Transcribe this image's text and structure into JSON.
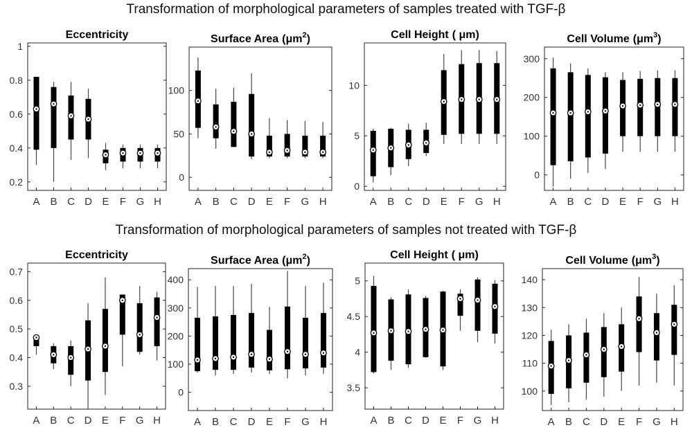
{
  "row_titles": [
    "Transformation of morphological parameters of samples treated with TGF-β",
    "Transformation of morphological parameters of samples not treated with TGF-β"
  ],
  "chart_data": [
    {
      "type": "box",
      "group": "treated with TGF-β",
      "title": "Eccentricity",
      "title_unit": "",
      "title_sup": "",
      "categories": [
        "A",
        "B",
        "C",
        "D",
        "E",
        "F",
        "G",
        "H"
      ],
      "ylim": [
        0.15,
        1.02
      ],
      "yticks": [
        0.2,
        0.4,
        0.6,
        0.8,
        1
      ],
      "boxes": [
        {
          "whisker_low": 0.3,
          "q1": 0.39,
          "median": 0.63,
          "q3": 0.82,
          "whisker_high": 0.82
        },
        {
          "whisker_low": 0.2,
          "q1": 0.4,
          "median": 0.66,
          "q3": 0.76,
          "whisker_high": 0.79
        },
        {
          "whisker_low": 0.33,
          "q1": 0.45,
          "median": 0.59,
          "q3": 0.71,
          "whisker_high": 0.79
        },
        {
          "whisker_low": 0.34,
          "q1": 0.45,
          "median": 0.57,
          "q3": 0.69,
          "whisker_high": 0.75
        },
        {
          "whisker_low": 0.27,
          "q1": 0.31,
          "median": 0.36,
          "q3": 0.39,
          "whisker_high": 0.43
        },
        {
          "whisker_low": 0.28,
          "q1": 0.32,
          "median": 0.37,
          "q3": 0.4,
          "whisker_high": 0.42
        },
        {
          "whisker_low": 0.28,
          "q1": 0.32,
          "median": 0.37,
          "q3": 0.4,
          "whisker_high": 0.42
        },
        {
          "whisker_low": 0.28,
          "q1": 0.32,
          "median": 0.37,
          "q3": 0.4,
          "whisker_high": 0.42
        }
      ]
    },
    {
      "type": "box",
      "group": "treated with TGF-β",
      "title": "Surface Area",
      "title_unit": "(μm",
      "title_sup": "2",
      "categories": [
        "A",
        "B",
        "C",
        "D",
        "E",
        "F",
        "G",
        "H"
      ],
      "ylim": [
        -15,
        150
      ],
      "yticks": [
        0,
        50,
        100
      ],
      "boxes": [
        {
          "whisker_low": 45,
          "q1": 57,
          "median": 88,
          "q3": 123,
          "whisker_high": 138
        },
        {
          "whisker_low": 33,
          "q1": 45,
          "median": 58,
          "q3": 84,
          "whisker_high": 102
        },
        {
          "whisker_low": 35,
          "q1": 35,
          "median": 53,
          "q3": 87,
          "whisker_high": 103
        },
        {
          "whisker_low": 21,
          "q1": 24,
          "median": 50,
          "q3": 96,
          "whisker_high": 120
        },
        {
          "whisker_low": 22,
          "q1": 24,
          "median": 29,
          "q3": 48,
          "whisker_high": 68
        },
        {
          "whisker_low": 22,
          "q1": 24,
          "median": 31,
          "q3": 50,
          "whisker_high": 66
        },
        {
          "whisker_low": 22,
          "q1": 24,
          "median": 29,
          "q3": 48,
          "whisker_high": 65
        },
        {
          "whisker_low": 22,
          "q1": 24,
          "median": 29,
          "q3": 48,
          "whisker_high": 64
        }
      ]
    },
    {
      "type": "box",
      "group": "treated with TGF-β",
      "title": "Cell Height",
      "title_unit": "( μm)",
      "title_sup": "",
      "categories": [
        "A",
        "B",
        "C",
        "D",
        "E",
        "F",
        "G",
        "H"
      ],
      "ylim": [
        -0.4,
        14.2
      ],
      "yticks": [
        0,
        5,
        10
      ],
      "boxes": [
        {
          "whisker_low": 0.4,
          "q1": 1.0,
          "median": 3.6,
          "q3": 5.5,
          "whisker_high": 5.7
        },
        {
          "whisker_low": 1.1,
          "q1": 1.9,
          "median": 3.8,
          "q3": 5.7,
          "whisker_high": 5.8
        },
        {
          "whisker_low": 2.0,
          "q1": 2.7,
          "median": 4.1,
          "q3": 5.6,
          "whisker_high": 6.2
        },
        {
          "whisker_low": 3.0,
          "q1": 3.3,
          "median": 4.3,
          "q3": 5.6,
          "whisker_high": 6.3
        },
        {
          "whisker_low": 4.2,
          "q1": 5.1,
          "median": 8.4,
          "q3": 11.5,
          "whisker_high": 13.1
        },
        {
          "whisker_low": 4.2,
          "q1": 5.2,
          "median": 8.6,
          "q3": 12.1,
          "whisker_high": 13.5
        },
        {
          "whisker_low": 4.2,
          "q1": 5.2,
          "median": 8.6,
          "q3": 12.2,
          "whisker_high": 13.5
        },
        {
          "whisker_low": 4.2,
          "q1": 5.2,
          "median": 8.6,
          "q3": 12.2,
          "whisker_high": 13.4
        }
      ]
    },
    {
      "type": "box",
      "group": "treated with TGF-β",
      "title": "Cell Volume",
      "title_unit": "(μm",
      "title_sup": "3",
      "categories": [
        "A",
        "B",
        "C",
        "D",
        "E",
        "F",
        "G",
        "H"
      ],
      "ylim": [
        -40,
        330
      ],
      "yticks": [
        0,
        100,
        200,
        300
      ],
      "boxes": [
        {
          "whisker_low": -30,
          "q1": 25,
          "median": 160,
          "q3": 275,
          "whisker_high": 303
        },
        {
          "whisker_low": -10,
          "q1": 35,
          "median": 160,
          "q3": 265,
          "whisker_high": 288
        },
        {
          "whisker_low": 5,
          "q1": 45,
          "median": 163,
          "q3": 258,
          "whisker_high": 275
        },
        {
          "whisker_low": 15,
          "q1": 55,
          "median": 165,
          "q3": 252,
          "whisker_high": 265
        },
        {
          "whisker_low": 60,
          "q1": 100,
          "median": 178,
          "q3": 245,
          "whisker_high": 265
        },
        {
          "whisker_low": 60,
          "q1": 100,
          "median": 180,
          "q3": 248,
          "whisker_high": 268
        },
        {
          "whisker_low": 60,
          "q1": 100,
          "median": 182,
          "q3": 250,
          "whisker_high": 270
        },
        {
          "whisker_low": 60,
          "q1": 100,
          "median": 182,
          "q3": 250,
          "whisker_high": 270
        }
      ]
    },
    {
      "type": "box",
      "group": "not treated with TGF-β",
      "title": "Eccentricity",
      "title_unit": "",
      "title_sup": "",
      "categories": [
        "A",
        "B",
        "C",
        "D",
        "E",
        "F",
        "G",
        "H"
      ],
      "ylim": [
        0.22,
        0.73
      ],
      "yticks": [
        0.3,
        0.4,
        0.5,
        0.6,
        0.7
      ],
      "boxes": [
        {
          "whisker_low": 0.41,
          "q1": 0.44,
          "median": 0.47,
          "q3": 0.47,
          "whisker_high": 0.47
        },
        {
          "whisker_low": 0.36,
          "q1": 0.38,
          "median": 0.41,
          "q3": 0.44,
          "whisker_high": 0.45
        },
        {
          "whisker_low": 0.3,
          "q1": 0.34,
          "median": 0.4,
          "q3": 0.44,
          "whisker_high": 0.46
        },
        {
          "whisker_low": 0.23,
          "q1": 0.32,
          "median": 0.43,
          "q3": 0.53,
          "whisker_high": 0.59
        },
        {
          "whisker_low": 0.27,
          "q1": 0.35,
          "median": 0.44,
          "q3": 0.57,
          "whisker_high": 0.68
        },
        {
          "whisker_low": 0.37,
          "q1": 0.48,
          "median": 0.6,
          "q3": 0.62,
          "whisker_high": 0.62
        },
        {
          "whisker_low": 0.41,
          "q1": 0.42,
          "median": 0.48,
          "q3": 0.59,
          "whisker_high": 0.65
        },
        {
          "whisker_low": 0.39,
          "q1": 0.44,
          "median": 0.54,
          "q3": 0.61,
          "whisker_high": 0.63
        }
      ]
    },
    {
      "type": "box",
      "group": "not treated with TGF-β",
      "title": "Surface Area",
      "title_unit": "(μm",
      "title_sup": "2",
      "categories": [
        "A",
        "B",
        "C",
        "D",
        "E",
        "F",
        "G",
        "H"
      ],
      "ylim": [
        -65,
        440
      ],
      "yticks": [
        0,
        100,
        200,
        300,
        400
      ],
      "boxes": [
        {
          "whisker_low": 70,
          "q1": 75,
          "median": 115,
          "q3": 265,
          "whisker_high": 375
        },
        {
          "whisker_low": 60,
          "q1": 80,
          "median": 120,
          "q3": 270,
          "whisker_high": 378
        },
        {
          "whisker_low": 65,
          "q1": 80,
          "median": 125,
          "q3": 275,
          "whisker_high": 378
        },
        {
          "whisker_low": 70,
          "q1": 88,
          "median": 135,
          "q3": 282,
          "whisker_high": 386
        },
        {
          "whisker_low": 65,
          "q1": 78,
          "median": 118,
          "q3": 222,
          "whisker_high": 304
        },
        {
          "whisker_low": 50,
          "q1": 82,
          "median": 145,
          "q3": 305,
          "whisker_high": 432
        },
        {
          "whisker_low": 60,
          "q1": 85,
          "median": 135,
          "q3": 265,
          "whisker_high": 378
        },
        {
          "whisker_low": 65,
          "q1": 88,
          "median": 140,
          "q3": 282,
          "whisker_high": 390
        }
      ]
    },
    {
      "type": "box",
      "group": "not treated with TGF-β",
      "title": "Cell Height",
      "title_unit": "( μm)",
      "title_sup": "",
      "categories": [
        "A",
        "B",
        "C",
        "D",
        "E",
        "F",
        "G",
        "H"
      ],
      "ylim": [
        3.2,
        5.25
      ],
      "yticks": [
        3.5,
        4,
        4.5,
        5
      ],
      "boxes": [
        {
          "whisker_low": 3.7,
          "q1": 3.72,
          "median": 4.27,
          "q3": 4.93,
          "whisker_high": 5.07
        },
        {
          "whisker_low": 3.75,
          "q1": 3.88,
          "median": 4.3,
          "q3": 4.74,
          "whisker_high": 4.77
        },
        {
          "whisker_low": 3.78,
          "q1": 3.83,
          "median": 4.29,
          "q3": 4.81,
          "whisker_high": 4.88
        },
        {
          "whisker_low": 3.92,
          "q1": 3.93,
          "median": 4.32,
          "q3": 4.76,
          "whisker_high": 4.79
        },
        {
          "whisker_low": 3.75,
          "q1": 3.8,
          "median": 4.31,
          "q3": 4.85,
          "whisker_high": 4.86
        },
        {
          "whisker_low": 4.3,
          "q1": 4.51,
          "median": 4.75,
          "q3": 4.82,
          "whisker_high": 4.88
        },
        {
          "whisker_low": 4.14,
          "q1": 4.3,
          "median": 4.73,
          "q3": 5.02,
          "whisker_high": 5.05
        },
        {
          "whisker_low": 4.12,
          "q1": 4.26,
          "median": 4.64,
          "q3": 4.96,
          "whisker_high": 5.01
        }
      ]
    },
    {
      "type": "box",
      "group": "not treated with TGF-β",
      "title": "Cell Volume",
      "title_unit": "(μm",
      "title_sup": "3",
      "categories": [
        "A",
        "B",
        "C",
        "D",
        "E",
        "F",
        "G",
        "H"
      ],
      "ylim": [
        93,
        144
      ],
      "yticks": [
        100,
        110,
        120,
        130,
        140
      ],
      "boxes": [
        {
          "whisker_low": 95,
          "q1": 99,
          "median": 109,
          "q3": 118,
          "whisker_high": 122
        },
        {
          "whisker_low": 96,
          "q1": 101,
          "median": 111,
          "q3": 120,
          "whisker_high": 124
        },
        {
          "whisker_low": 97,
          "q1": 103,
          "median": 113,
          "q3": 121,
          "whisker_high": 126
        },
        {
          "whisker_low": 98,
          "q1": 105,
          "median": 115,
          "q3": 123,
          "whisker_high": 128
        },
        {
          "whisker_low": 100,
          "q1": 107,
          "median": 116,
          "q3": 124,
          "whisker_high": 130
        },
        {
          "whisker_low": 102,
          "q1": 114,
          "median": 126,
          "q3": 134,
          "whisker_high": 141
        },
        {
          "whisker_low": 103,
          "q1": 111,
          "median": 121,
          "q3": 128,
          "whisker_high": 135
        },
        {
          "whisker_low": 102,
          "q1": 113,
          "median": 124,
          "q3": 131,
          "whisker_high": 138
        }
      ]
    }
  ]
}
